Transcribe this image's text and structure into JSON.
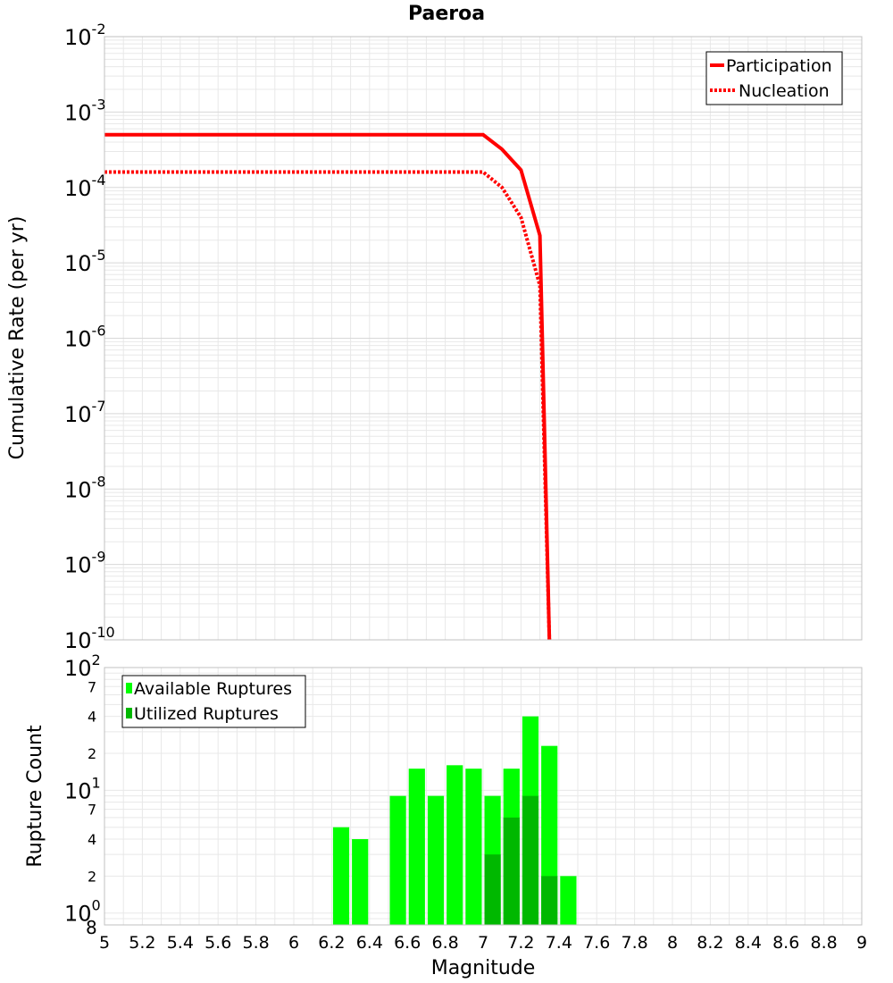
{
  "chart_data": {
    "title": "Paeroa",
    "xlabel": "Magnitude",
    "xlim": [
      5,
      9
    ],
    "x_ticks": [
      "5",
      "5.2",
      "5.4",
      "5.6",
      "5.8",
      "6",
      "6.2",
      "6.4",
      "6.6",
      "6.8",
      "7",
      "7.2",
      "7.4",
      "7.6",
      "7.8",
      "8",
      "8.2",
      "8.4",
      "8.6",
      "8.8",
      "9"
    ],
    "colors": {
      "participation": "#ff0000",
      "nucleation": "#ff0000",
      "available": "#00ff00",
      "utilized": "#00b800",
      "grid": "#e8e8e8",
      "frame": "#c0c0c0"
    },
    "top_panel": {
      "type": "line",
      "ylabel": "Cumulative Rate (per yr)",
      "yscale": "log",
      "ylim_exp": [
        -10,
        -2
      ],
      "y_tick_base": "10",
      "y_tick_exps": [
        "-2",
        "-3",
        "-4",
        "-5",
        "-6",
        "-7",
        "-8",
        "-9",
        "-10"
      ],
      "legend": [
        "Participation",
        "Nucleation"
      ],
      "series": [
        {
          "name": "Participation",
          "style": "solid",
          "x": [
            5.0,
            7.0,
            7.1,
            7.2,
            7.3,
            7.35
          ],
          "y": [
            0.0005,
            0.0005,
            0.00032,
            0.00017,
            2.3e-05,
            1e-10
          ]
        },
        {
          "name": "Nucleation",
          "style": "dotted",
          "x": [
            5.0,
            7.0,
            7.1,
            7.2,
            7.3,
            7.35
          ],
          "y": [
            0.00016,
            0.00016,
            0.0001,
            4e-05,
            5e-06,
            1e-10
          ]
        }
      ]
    },
    "bottom_panel": {
      "type": "bar",
      "ylabel": "Rupture Count",
      "yscale": "log",
      "y_major_labels": [
        {
          "base": "10",
          "exp": "2",
          "value": 100
        },
        {
          "base": "10",
          "exp": "1",
          "value": 10
        },
        {
          "base": "10",
          "exp": "0",
          "value": 1
        }
      ],
      "y_minor_labels": [
        {
          "text": "7",
          "value": 70
        },
        {
          "text": "4",
          "value": 40
        },
        {
          "text": "2",
          "value": 20
        },
        {
          "text": "7",
          "value": 7
        },
        {
          "text": "4",
          "value": 4
        },
        {
          "text": "2",
          "value": 2
        },
        {
          "text": "8",
          "value": 0.8
        }
      ],
      "ylim": [
        0.8,
        100
      ],
      "bin_width": 0.1,
      "legend": [
        "Available Ruptures",
        "Utilized Ruptures"
      ],
      "series": [
        {
          "name": "Available Ruptures",
          "x": [
            6.25,
            6.35,
            6.55,
            6.65,
            6.75,
            6.85,
            6.95,
            7.05,
            7.15,
            7.25,
            7.35,
            7.45
          ],
          "values": [
            5,
            4,
            9,
            15,
            9,
            16,
            15,
            9,
            15,
            40,
            23,
            2
          ]
        },
        {
          "name": "Utilized Ruptures",
          "x": [
            7.05,
            7.15,
            7.25,
            7.35
          ],
          "values": [
            3,
            6,
            9,
            2
          ]
        }
      ]
    }
  }
}
